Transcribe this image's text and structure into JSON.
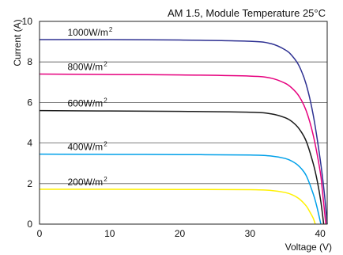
{
  "chart_data": {
    "type": "line",
    "title": "AM 1.5, Module Temperature 25°C",
    "xlabel": "Voltage (V)",
    "ylabel": "Current (A)",
    "xlim": [
      0,
      41
    ],
    "ylim": [
      0,
      10
    ],
    "x_ticks": [
      "0",
      "10",
      "20",
      "30",
      "40"
    ],
    "y_ticks": [
      "0",
      "2",
      "4",
      "6",
      "8",
      "10"
    ],
    "grid": "horizontal",
    "legend": "inline labels above each curve",
    "series": [
      {
        "name": "1000W/m²",
        "color": "#2e3192",
        "label": {
          "text": "1000W/m",
          "sup": "2"
        },
        "x": [
          0,
          10,
          20,
          30,
          33,
          35,
          36,
          37,
          38,
          39,
          40,
          40.6,
          41
        ],
        "y": [
          9.1,
          9.1,
          9.08,
          9.02,
          8.9,
          8.6,
          8.3,
          7.8,
          6.9,
          5.4,
          3.2,
          1.5,
          0
        ]
      },
      {
        "name": "800W/m²",
        "color": "#e6007e",
        "label": {
          "text": "800W/m",
          "sup": "2"
        },
        "x": [
          0,
          10,
          20,
          30,
          33,
          35,
          36,
          37,
          38,
          39,
          40,
          40.3,
          40.8
        ],
        "y": [
          7.4,
          7.38,
          7.36,
          7.3,
          7.2,
          6.95,
          6.7,
          6.3,
          5.6,
          4.4,
          2.6,
          1.7,
          0
        ]
      },
      {
        "name": "600W/m²",
        "color": "#1a1a1a",
        "label": {
          "text": "600W/m",
          "sup": "2"
        },
        "x": [
          0,
          10,
          20,
          30,
          33,
          35,
          36,
          37,
          38,
          39,
          39.6,
          40.1,
          40.5
        ],
        "y": [
          5.6,
          5.58,
          5.56,
          5.52,
          5.44,
          5.25,
          5.05,
          4.7,
          4.1,
          3.0,
          2.1,
          1.1,
          0
        ]
      },
      {
        "name": "400W/m²",
        "color": "#00a0e9",
        "label": {
          "text": "400W/m",
          "sup": "2"
        },
        "x": [
          0,
          10,
          20,
          30,
          33,
          35,
          36,
          37,
          38,
          39,
          39.5,
          40.1
        ],
        "y": [
          3.45,
          3.44,
          3.43,
          3.41,
          3.36,
          3.24,
          3.1,
          2.85,
          2.4,
          1.5,
          0.9,
          0
        ]
      },
      {
        "name": "200W/m²",
        "color": "#fff100",
        "label": {
          "text": "200W/m",
          "sup": "2"
        },
        "x": [
          0,
          10,
          20,
          30,
          33,
          35,
          36,
          37,
          38,
          38.5,
          39,
          39.3
        ],
        "y": [
          1.72,
          1.72,
          1.71,
          1.7,
          1.66,
          1.56,
          1.45,
          1.25,
          0.9,
          0.62,
          0.3,
          0
        ]
      }
    ]
  }
}
